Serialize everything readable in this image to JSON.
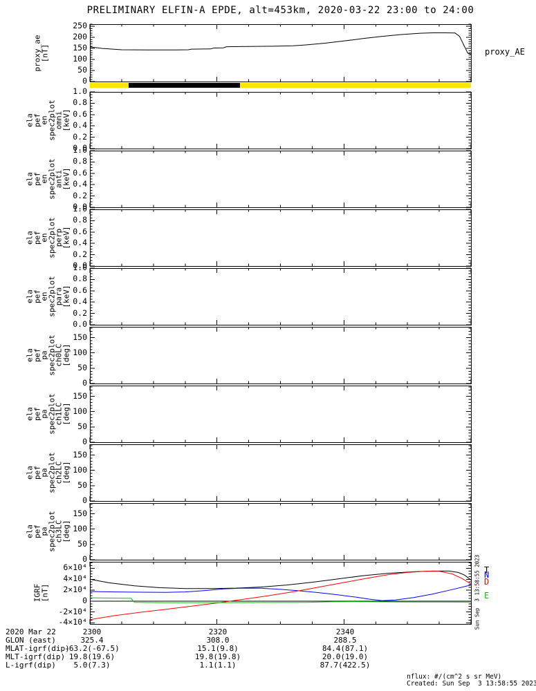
{
  "title": "PRELIMINARY ELFIN-A EPDE, alt=453km, 2020-03-22 23:00 to 24:00",
  "side_timestamp": "Sun Sep  3 13:58:55 2023",
  "footer": {
    "nflux_units": "nflux: #/(cm^2 s sr MeV)",
    "created": "Created: Sun Sep  3 13:58:55 2023"
  },
  "bottom_table": {
    "rows": [
      {
        "label": "2020 Mar 22",
        "values": [
          "2300",
          "2320",
          "2340"
        ]
      },
      {
        "label": "GLON (east)",
        "values": [
          "325.4",
          "308.0",
          "288.5"
        ]
      },
      {
        "label": "MLAT-igrf(dip)",
        "values": [
          "-63.2(-67.5)",
          "15.1(9.8)",
          "84.4(87.1)"
        ]
      },
      {
        "label": "MLT-igrf(dip)",
        "values": [
          "19.8(19.6)",
          "19.8(19.8)",
          "20.0(19.0)"
        ]
      },
      {
        "label": "L-igrf(dip)",
        "values": [
          "5.0(7.3)",
          "1.1(1.1)",
          "87.7(422.5)"
        ]
      }
    ]
  },
  "chart_data": {
    "type": "line",
    "description": "Multi-panel time series, 2020-03-22 23:00 to 24:00 UT",
    "x_axis": {
      "range_minutes": [
        0,
        60
      ],
      "major_tick_minutes": [
        0,
        20,
        40,
        60
      ],
      "minor_tick_step_minutes": 5,
      "tick_labels": [
        "2300",
        "2320",
        "2340"
      ]
    },
    "panels": [
      {
        "id": "proxy_ae",
        "kind": "line",
        "ylabel_lines": [
          "proxy_ae",
          "[nT]"
        ],
        "right_label": "proxy_AE",
        "ylim": [
          0,
          260
        ],
        "ytick_values": [
          0,
          50,
          100,
          150,
          200,
          250
        ],
        "ytick_labels": [
          "0",
          "50",
          "100",
          "150",
          "200",
          "250"
        ],
        "y_minor_step": 10,
        "series": [
          {
            "name": "proxy_AE",
            "color": "#000000",
            "x_minutes": [
              0,
              2,
              5,
              9,
              13,
              15.5,
              16,
              19,
              19.5,
              21,
              21.5,
              25,
              29,
              32,
              34,
              37,
              40,
              43,
              46,
              49,
              52,
              54,
              56,
              57.5,
              58.2,
              59.5,
              60
            ],
            "y": [
              157,
              150,
              144,
              143,
              143,
              144,
              147,
              148,
              152,
              153,
              158,
              159,
              160,
              162,
              166,
              174,
              184,
              195,
              205,
              213,
              219,
              221,
              221,
              220,
              205,
              128,
              125
            ]
          }
        ]
      },
      {
        "id": "status_bar",
        "kind": "color_bar",
        "segments": [
          {
            "start_frac": 0.0,
            "end_frac": 0.102,
            "color": "#FFE600"
          },
          {
            "start_frac": 0.102,
            "end_frac": 0.394,
            "color": "#000000"
          },
          {
            "start_frac": 0.394,
            "end_frac": 1.0,
            "color": "#FFE600"
          }
        ]
      },
      {
        "id": "en_omni",
        "kind": "spectrogram-empty",
        "ylabel_lines": [
          "ela",
          "pef",
          "en",
          "spec2plot",
          "omni",
          "[keV]"
        ],
        "ylim": [
          0,
          1
        ],
        "ytick_values": [
          0,
          0.2,
          0.4,
          0.6,
          0.8,
          1.0
        ],
        "ytick_labels": [
          "0.0",
          "0.2",
          "0.4",
          "0.6",
          "0.8",
          "1.0"
        ],
        "y_minor_step": 0.05,
        "series": []
      },
      {
        "id": "en_anti",
        "kind": "spectrogram-empty",
        "ylabel_lines": [
          "ela",
          "pef",
          "en",
          "spec2plot",
          "anti",
          "[keV]"
        ],
        "ylim": [
          0,
          1
        ],
        "ytick_values": [
          0,
          0.2,
          0.4,
          0.6,
          0.8,
          1.0
        ],
        "ytick_labels": [
          "0.0",
          "0.2",
          "0.4",
          "0.6",
          "0.8",
          "1.0"
        ],
        "y_minor_step": 0.05,
        "series": []
      },
      {
        "id": "en_perp",
        "kind": "spectrogram-empty",
        "ylabel_lines": [
          "ela",
          "pef",
          "en",
          "spec2plot",
          "perp",
          "[keV]"
        ],
        "ylim": [
          0,
          1
        ],
        "ytick_values": [
          0,
          0.2,
          0.4,
          0.6,
          0.8,
          1.0
        ],
        "ytick_labels": [
          "0.0",
          "0.2",
          "0.4",
          "0.6",
          "0.8",
          "1.0"
        ],
        "y_minor_step": 0.05,
        "series": []
      },
      {
        "id": "en_para",
        "kind": "spectrogram-empty",
        "ylabel_lines": [
          "ela",
          "pef",
          "en",
          "spec2plot",
          "para",
          "[keV]"
        ],
        "ylim": [
          0,
          1
        ],
        "ytick_values": [
          0,
          0.2,
          0.4,
          0.6,
          0.8,
          1.0
        ],
        "ytick_labels": [
          "0.0",
          "0.2",
          "0.4",
          "0.6",
          "0.8",
          "1.0"
        ],
        "y_minor_step": 0.05,
        "series": []
      },
      {
        "id": "pa_ch0LC",
        "kind": "spectrogram-empty",
        "ylabel_lines": [
          "ela",
          "pef",
          "pa",
          "spec2plot",
          "ch0LC",
          "[deg]"
        ],
        "ylim": [
          0,
          185
        ],
        "ytick_values": [
          0,
          50,
          100,
          150
        ],
        "ytick_labels": [
          "0",
          "50",
          "100",
          "150"
        ],
        "y_minor_step": 10,
        "series": []
      },
      {
        "id": "pa_ch1LC",
        "kind": "spectrogram-empty",
        "ylabel_lines": [
          "ela",
          "pef",
          "pa",
          "spec2plot",
          "ch1LC",
          "[deg]"
        ],
        "ylim": [
          0,
          185
        ],
        "ytick_values": [
          0,
          50,
          100,
          150
        ],
        "ytick_labels": [
          "0",
          "50",
          "100",
          "150"
        ],
        "y_minor_step": 10,
        "series": []
      },
      {
        "id": "pa_ch2LC",
        "kind": "spectrogram-empty",
        "ylabel_lines": [
          "ela",
          "pef",
          "pa",
          "spec2plot",
          "ch2LC",
          "[deg]"
        ],
        "ylim": [
          0,
          185
        ],
        "ytick_values": [
          0,
          50,
          100,
          150
        ],
        "ytick_labels": [
          "0",
          "50",
          "100",
          "150"
        ],
        "y_minor_step": 10,
        "series": []
      },
      {
        "id": "pa_ch3LC",
        "kind": "spectrogram-empty",
        "ylabel_lines": [
          "ela",
          "pef",
          "pa",
          "spec2plot",
          "ch3LC",
          "[deg]"
        ],
        "ylim": [
          0,
          185
        ],
        "ytick_values": [
          0,
          50,
          100,
          150
        ],
        "ytick_labels": [
          "0",
          "50",
          "100",
          "150"
        ],
        "y_minor_step": 10,
        "series": []
      },
      {
        "id": "igrf",
        "kind": "line",
        "ylabel_lines": [
          "IGRF",
          "[nT]"
        ],
        "ylim": [
          -42000,
          72000
        ],
        "ytick_values": [
          -40000,
          -20000,
          0,
          20000,
          40000,
          60000
        ],
        "ytick_labels": [
          "-4×10⁴",
          "-2×10⁴",
          "0",
          "2×10⁴",
          "4×10⁴",
          "6×10⁴"
        ],
        "y_minor_step": 5000,
        "zero_line": true,
        "legend": [
          {
            "label": "T",
            "color": "#000000"
          },
          {
            "label": "N",
            "color": "#0000FF"
          },
          {
            "label": "D",
            "color": "#FF0000"
          },
          {
            "label": "E",
            "color": "#00CC00"
          }
        ],
        "series": [
          {
            "name": "T",
            "color": "#000000",
            "x_minutes": [
              0,
              3,
              7,
              11,
              15,
              19,
              23,
              27,
              31,
              35,
              39,
              43,
              47,
              51,
              54,
              56.5,
              58,
              59,
              60
            ],
            "y": [
              40000,
              33500,
              28000,
              24500,
              23000,
              22800,
              23800,
              25800,
              29500,
              34500,
              40500,
              46500,
              51000,
              53800,
              55000,
              55000,
              52500,
              47500,
              38500
            ]
          },
          {
            "name": "N",
            "color": "#0000FF",
            "x_minutes": [
              0,
              4,
              8,
              12,
              15,
              18,
              21,
              24,
              27,
              30,
              33,
              36,
              39,
              42,
              44,
              46,
              48,
              51,
              54,
              57,
              60
            ],
            "y": [
              17500,
              16800,
              16300,
              16000,
              16800,
              19200,
              22300,
              23800,
              23500,
              21500,
              18800,
              15500,
              11500,
              7000,
              3500,
              800,
              1800,
              6500,
              13000,
              21000,
              29500
            ]
          },
          {
            "name": "D",
            "color": "#FF0000",
            "x_minutes": [
              0,
              4,
              8,
              12,
              16,
              20,
              24,
              28,
              32,
              36,
              40,
              44,
              47,
              50,
              53,
              55,
              57,
              58.5,
              60
            ],
            "y": [
              -34000,
              -26500,
              -20500,
              -15000,
              -9500,
              -3500,
              3000,
              9500,
              17000,
              25500,
              34000,
              42500,
              48500,
              52500,
              54800,
              54500,
              50000,
              42000,
              31500
            ]
          },
          {
            "name": "E",
            "color": "#00CC00",
            "x_minutes": [
              0,
              6.5,
              7,
              12,
              20,
              28,
              34,
              38,
              41,
              45,
              50,
              55,
              60
            ],
            "y": [
              6000,
              5000,
              -2500,
              -2800,
              -2800,
              -2600,
              -2400,
              -1400,
              -900,
              -1400,
              -1700,
              -1800,
              -2000
            ]
          }
        ]
      }
    ]
  }
}
